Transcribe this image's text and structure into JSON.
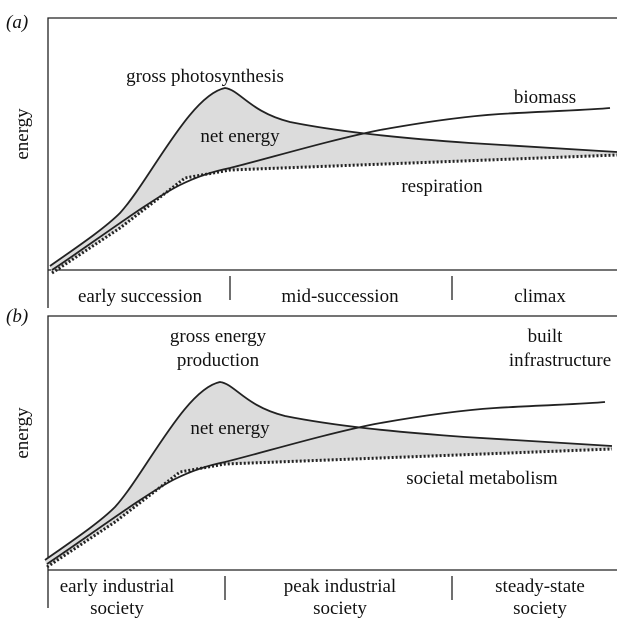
{
  "panels": [
    {
      "label": "(a)",
      "y_axis": "energy",
      "annotations": {
        "gross": [
          "gross photosynthesis"
        ],
        "net": [
          "net energy"
        ],
        "stock": [
          "biomass"
        ],
        "loss": [
          "respiration"
        ]
      },
      "stages": [
        [
          "early succession"
        ],
        [
          "mid-succession"
        ],
        [
          "climax"
        ]
      ]
    },
    {
      "label": "(b)",
      "y_axis": "energy",
      "annotations": {
        "gross": [
          "gross energy",
          "production"
        ],
        "net": [
          "net energy"
        ],
        "stock": [
          "built",
          "infrastructure"
        ],
        "loss": [
          "societal metabolism"
        ]
      },
      "stages": [
        [
          "early industrial",
          "society"
        ],
        [
          "peak industrial",
          "society"
        ],
        [
          "steady-state",
          "society"
        ]
      ]
    }
  ]
}
